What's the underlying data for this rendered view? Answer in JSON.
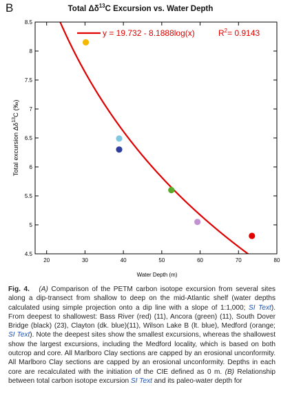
{
  "panel_letter": "B",
  "chart_data": {
    "type": "scatter",
    "title_prefix": "Total ",
    "title_delta": "Δδ",
    "title_super": "13",
    "title_suffix": "C Excursion vs. Water Depth",
    "xlabel": "Water Depth (m)",
    "ylabel_prefix": "Total excursion Δδ",
    "ylabel_super": "13",
    "ylabel_suffix": "C (‰)",
    "xlim": [
      17,
      80
    ],
    "ylim": [
      4.5,
      8.5
    ],
    "xticks": [
      20,
      30,
      40,
      50,
      60,
      70,
      80
    ],
    "yticks": [
      4.5,
      5,
      5.5,
      6,
      6.5,
      7,
      7.5,
      8,
      8.5
    ],
    "grid": false,
    "legend_position": "top",
    "points": [
      {
        "x": 30.2,
        "y": 8.15,
        "color": "#f5b800"
      },
      {
        "x": 38.9,
        "y": 6.49,
        "color": "#7ec8e3"
      },
      {
        "x": 38.9,
        "y": 6.3,
        "color": "#2e3e9e"
      },
      {
        "x": 52.5,
        "y": 5.6,
        "color": "#5aaa2a"
      },
      {
        "x": 59.3,
        "y": 5.05,
        "color": "#c393d1"
      },
      {
        "x": 73.5,
        "y": 4.81,
        "color": "#e00000"
      }
    ],
    "fit": {
      "intercept": 19.732,
      "slope": -8.1888,
      "log_base": 10,
      "color": "#e00000",
      "legend_text": "y = 19.732 - 8.1888log(x)",
      "r2_label": "R",
      "r2_super": "2",
      "r2_value": "= 0.9143"
    }
  },
  "caption": {
    "fig_label": "Fig. 4.",
    "part_a": "(A)",
    "seg1": " Comparison of the PETM carbon isotope excursion from several sites along a dip-transect from shallow to deep on the mid-Atlantic shelf (water depths calculated using simple projection onto a dip line with a slope of 1:1,000; ",
    "si_text": "SI Text",
    "seg2": "). From deepest to shallowest: Bass River (red) (11), Ancora (green) (11), South Dover Bridge (black) (23), Clayton (dk. blue)(11), Wilson Lake B (lt. blue), Medford (orange; ",
    "seg3": "). Note the deepest sites show the smallest excursions, whereas the shallowest show the largest excursions, including the Medford locality, which is based on both outcrop and core. All Marlboro Clay sections are capped by an erosional unconformity. All Marlboro Clay sections are capped by an erosional unconformity. Depths in each core are recalculated with the initiation of the CIE defined as 0 m. ",
    "part_b": "(B)",
    "seg4": " Relationship between total carbon isotope excursion ",
    "seg5": " and its paleo-water depth for"
  }
}
